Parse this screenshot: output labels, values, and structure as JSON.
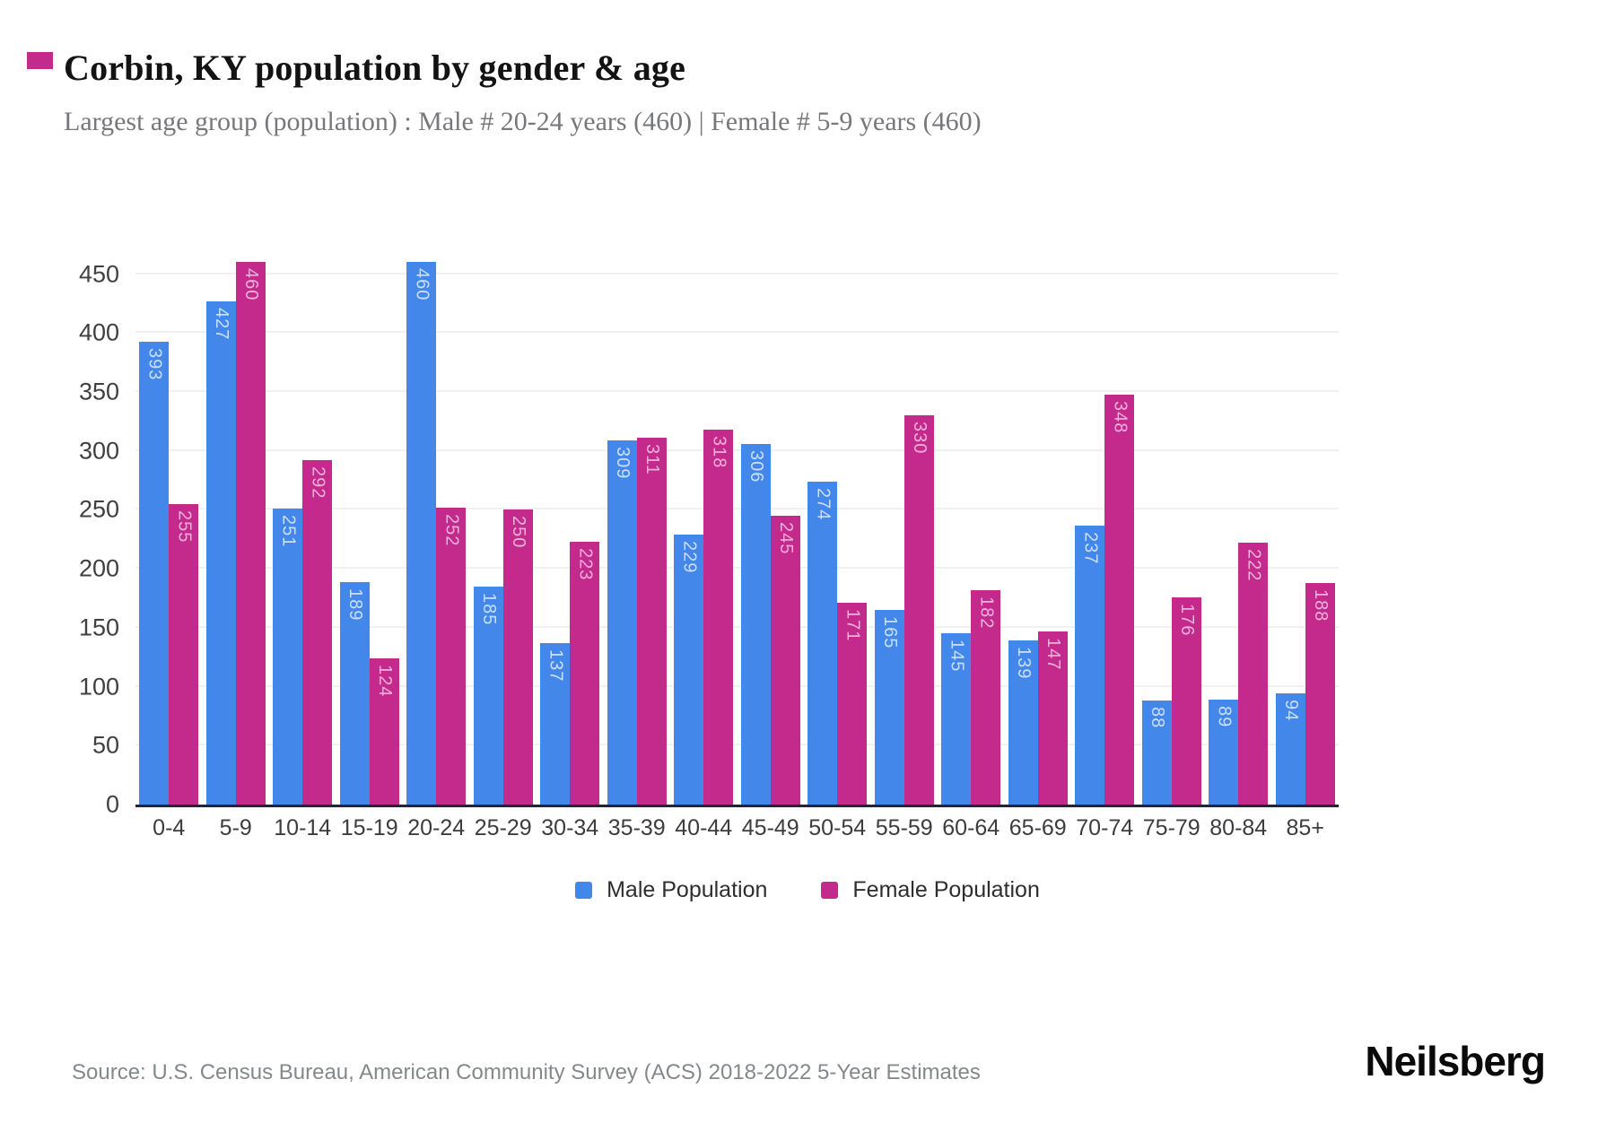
{
  "page": {
    "title": "Corbin, KY population by gender & age",
    "subtitle": "Largest age group (population) : Male # 20-24 years (460) | Female # 5-9 years (460)",
    "source": "Source: U.S. Census Bureau, American Community Survey (ACS) 2018-2022 5-Year Estimates",
    "brand": "Neilsberg"
  },
  "chart_data": {
    "type": "bar",
    "title": "Corbin, KY population by gender & age",
    "categories": [
      "0-4",
      "5-9",
      "10-14",
      "15-19",
      "20-24",
      "25-29",
      "30-34",
      "35-39",
      "40-44",
      "45-49",
      "50-54",
      "55-59",
      "60-64",
      "65-69",
      "70-74",
      "75-79",
      "80-84",
      "85+"
    ],
    "series": [
      {
        "name": "Male Population",
        "color": "#4387eb",
        "values": [
          393,
          427,
          251,
          189,
          460,
          185,
          137,
          309,
          229,
          306,
          274,
          165,
          145,
          139,
          237,
          88,
          89,
          94
        ]
      },
      {
        "name": "Female Population",
        "color": "#c32a8c",
        "values": [
          255,
          460,
          292,
          124,
          252,
          250,
          223,
          311,
          318,
          245,
          171,
          330,
          182,
          147,
          348,
          176,
          222,
          188
        ]
      }
    ],
    "xlabel": "",
    "ylabel": "",
    "ylim": [
      0,
      490
    ],
    "yticks": [
      0,
      50,
      100,
      150,
      200,
      250,
      300,
      350,
      400,
      450
    ],
    "grid": "horizontal",
    "legend_position": "bottom",
    "bar_value_labels": "inside-top-rotated"
  }
}
